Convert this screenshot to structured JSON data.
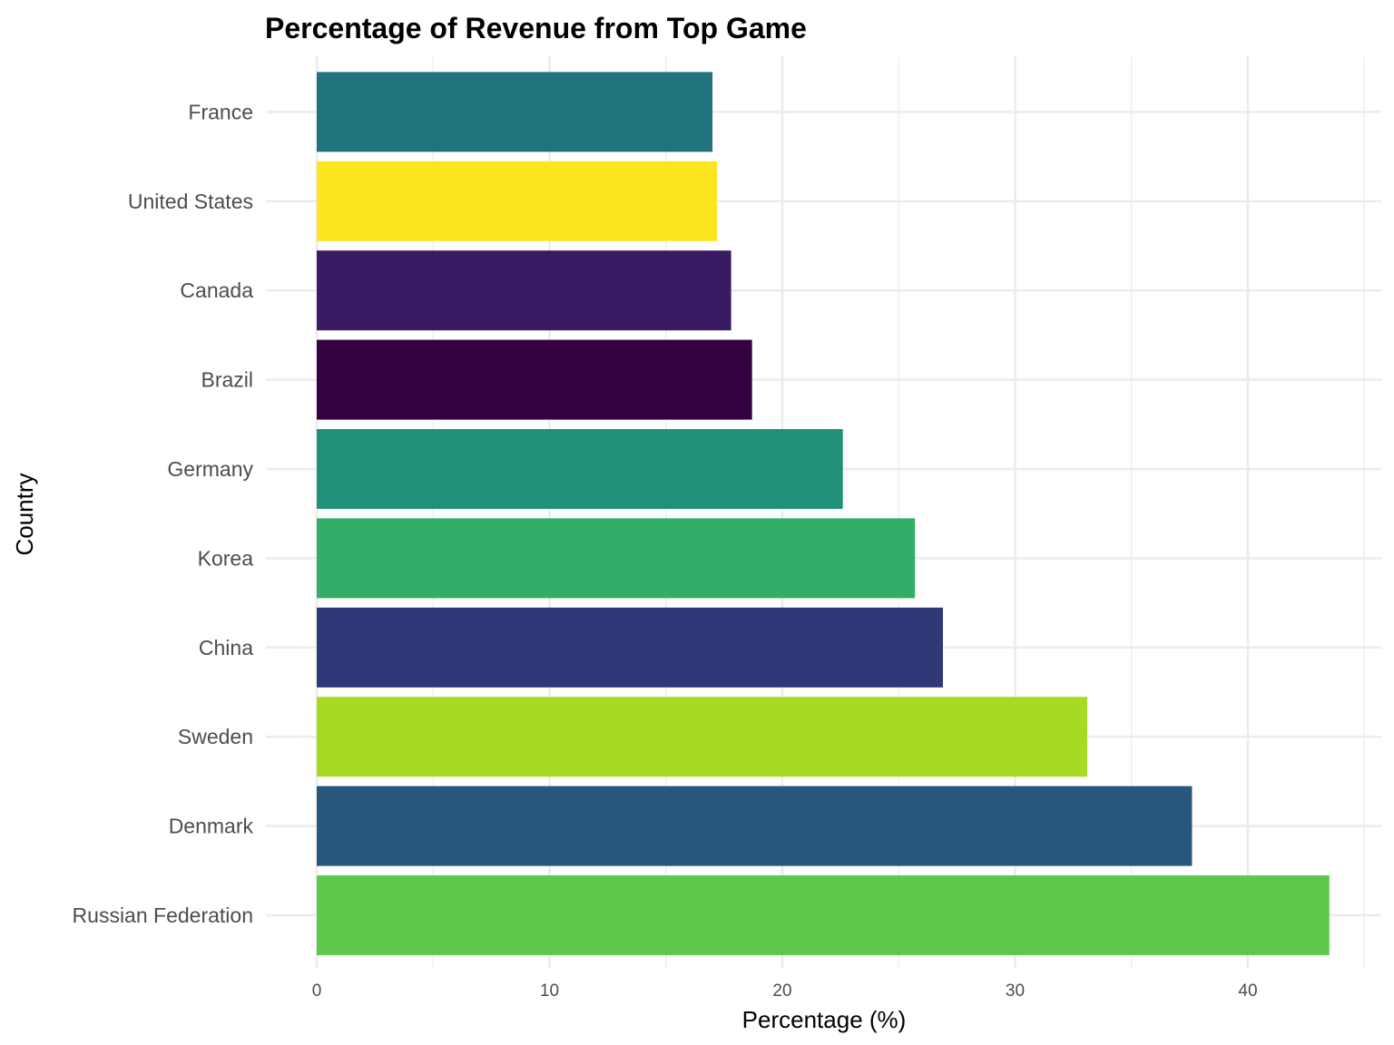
{
  "chart_data": {
    "type": "bar",
    "orientation": "horizontal",
    "title": "Percentage of Revenue from Top Game",
    "xlabel": "Percentage (%)",
    "ylabel": "Country",
    "xlim": [
      0,
      45
    ],
    "x_ticks": [
      0,
      10,
      20,
      30,
      40
    ],
    "grid": true,
    "legend": "none",
    "categories": [
      "Russian Federation",
      "Denmark",
      "Sweden",
      "China",
      "Korea",
      "Germany",
      "Brazil",
      "Canada",
      "United States",
      "France"
    ],
    "values": [
      43.5,
      37.6,
      33.1,
      26.9,
      25.7,
      22.6,
      18.7,
      17.8,
      17.2,
      17.0
    ],
    "colors": [
      "#5EC84A",
      "#27577D",
      "#A6DB22",
      "#303977",
      "#33AE69",
      "#209078",
      "#350040",
      "#3A1A62",
      "#FDE51F",
      "#20727C"
    ]
  }
}
